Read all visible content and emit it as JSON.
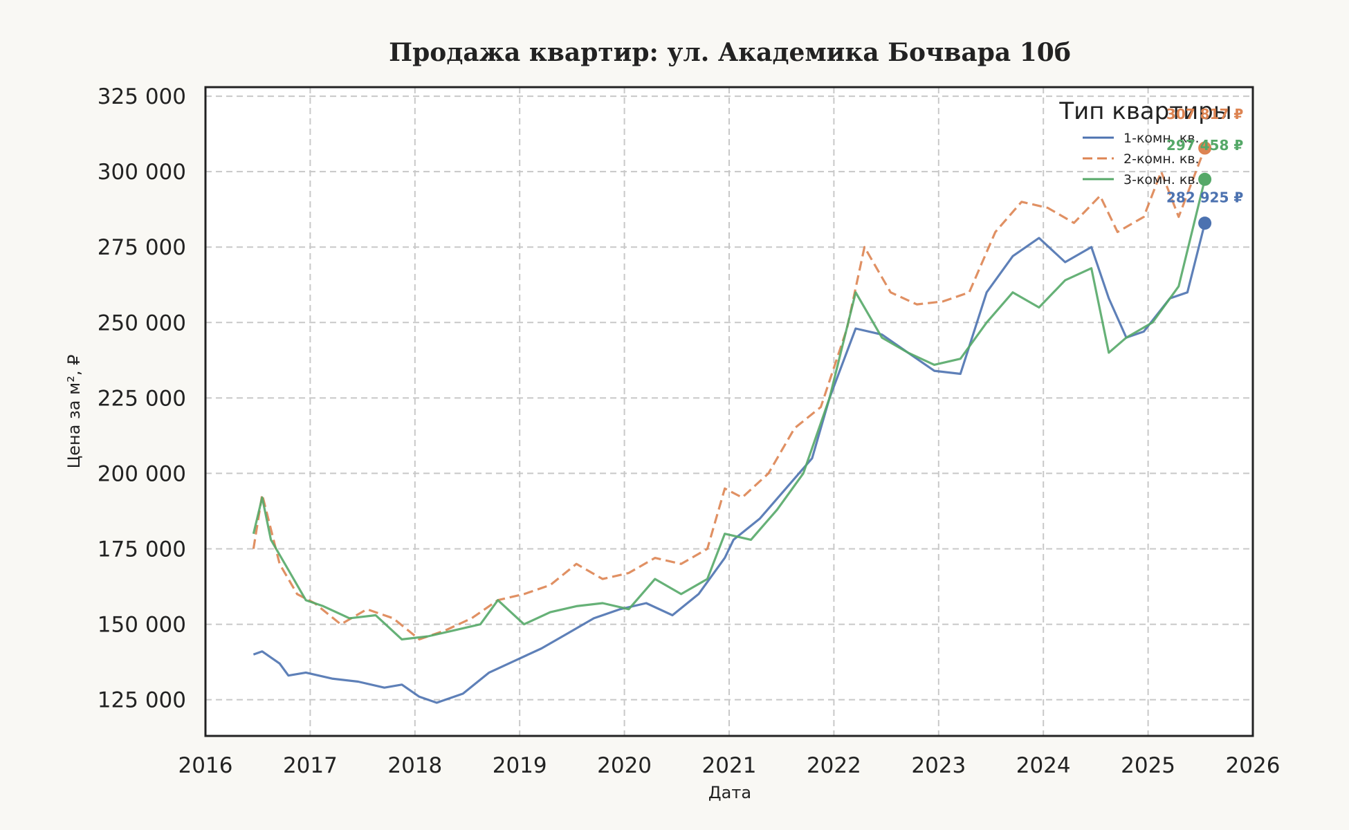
{
  "chart_data": {
    "type": "line",
    "title": "Продажа квартир: ул. Академика Бочвара 10б",
    "xlabel": "Дата",
    "ylabel": "Цена за м², ₽",
    "xlim": [
      2016,
      2026
    ],
    "ylim": [
      113000,
      328000
    ],
    "x_ticks": [
      "2016",
      "2017",
      "2018",
      "2019",
      "2020",
      "2021",
      "2022",
      "2023",
      "2024",
      "2025",
      "2026"
    ],
    "y_ticks": [
      "125 000",
      "150 000",
      "175 000",
      "200 000",
      "225 000",
      "250 000",
      "275 000",
      "300 000",
      "325 000"
    ],
    "grid": true,
    "legend": {
      "title": "Тип квартиры",
      "placement": "top-right"
    },
    "series": [
      {
        "name": "1-комн. кв.",
        "color": "#4c72b0",
        "dash": "solid",
        "end_label": "282 925 ₽",
        "end_value": 282925,
        "x": [
          "2016-06",
          "2016-07",
          "2016-09",
          "2016-10",
          "2016-12",
          "2017-03",
          "2017-06",
          "2017-09",
          "2017-11",
          "2018-01",
          "2018-03",
          "2018-06",
          "2018-09",
          "2018-12",
          "2019-03",
          "2019-06",
          "2019-09",
          "2019-12",
          "2020-03",
          "2020-06",
          "2020-09",
          "2020-12",
          "2021-01",
          "2021-04",
          "2021-07",
          "2021-10",
          "2021-12",
          "2022-03",
          "2022-06",
          "2022-09",
          "2022-12",
          "2023-03",
          "2023-06",
          "2023-09",
          "2023-12",
          "2024-03",
          "2024-06",
          "2024-08",
          "2024-10",
          "2024-12",
          "2025-03",
          "2025-05",
          "2025-07"
        ],
        "y": [
          140000,
          141000,
          137000,
          133000,
          134000,
          132000,
          131000,
          129000,
          130000,
          126000,
          124000,
          127000,
          134000,
          138000,
          142000,
          147000,
          152000,
          155000,
          157000,
          153000,
          160000,
          172000,
          178000,
          185000,
          195000,
          205000,
          225000,
          248000,
          246000,
          240000,
          234000,
          233000,
          260000,
          272000,
          278000,
          270000,
          275000,
          258000,
          245000,
          247000,
          258000,
          260000,
          282925
        ]
      },
      {
        "name": "2-комн. кв.",
        "color": "#dd8452",
        "dash": "dashed",
        "end_label": "307 817 ₽",
        "end_value": 307817,
        "x": [
          "2016-06",
          "2016-07",
          "2016-09",
          "2016-11",
          "2017-01",
          "2017-04",
          "2017-07",
          "2017-10",
          "2018-01",
          "2018-04",
          "2018-07",
          "2018-10",
          "2019-01",
          "2019-04",
          "2019-07",
          "2019-10",
          "2020-01",
          "2020-04",
          "2020-07",
          "2020-10",
          "2020-12",
          "2021-02",
          "2021-05",
          "2021-08",
          "2021-11",
          "2022-02",
          "2022-04",
          "2022-07",
          "2022-10",
          "2023-01",
          "2023-04",
          "2023-07",
          "2023-10",
          "2024-01",
          "2024-04",
          "2024-07",
          "2024-09",
          "2024-12",
          "2025-02",
          "2025-04",
          "2025-07"
        ],
        "y": [
          175000,
          193000,
          170000,
          160000,
          157000,
          150000,
          155000,
          152000,
          145000,
          148000,
          152000,
          158000,
          160000,
          163000,
          170000,
          165000,
          167000,
          172000,
          170000,
          175000,
          195000,
          192000,
          200000,
          215000,
          222000,
          248000,
          275000,
          260000,
          256000,
          257000,
          260000,
          280000,
          290000,
          288000,
          283000,
          292000,
          280000,
          285000,
          300000,
          285000,
          307817
        ]
      },
      {
        "name": "3-комн. кв.",
        "color": "#55a868",
        "dash": "solid",
        "end_label": "297 458 ₽",
        "end_value": 297458,
        "x": [
          "2016-06",
          "2016-07",
          "2016-08",
          "2016-10",
          "2016-12",
          "2017-02",
          "2017-05",
          "2017-08",
          "2017-11",
          "2018-02",
          "2018-05",
          "2018-08",
          "2018-10",
          "2019-01",
          "2019-04",
          "2019-07",
          "2019-10",
          "2020-01",
          "2020-04",
          "2020-07",
          "2020-10",
          "2020-12",
          "2021-03",
          "2021-06",
          "2021-09",
          "2021-12",
          "2022-03",
          "2022-06",
          "2022-09",
          "2022-12",
          "2023-03",
          "2023-06",
          "2023-09",
          "2023-12",
          "2024-03",
          "2024-06",
          "2024-08",
          "2024-10",
          "2025-01",
          "2025-04",
          "2025-07"
        ],
        "y": [
          180000,
          192000,
          178000,
          168000,
          158000,
          156000,
          152000,
          153000,
          145000,
          146000,
          148000,
          150000,
          158000,
          150000,
          154000,
          156000,
          157000,
          155000,
          165000,
          160000,
          165000,
          180000,
          178000,
          188000,
          200000,
          225000,
          260000,
          245000,
          240000,
          236000,
          238000,
          250000,
          260000,
          255000,
          264000,
          268000,
          240000,
          245000,
          250000,
          262000,
          297458
        ]
      }
    ]
  }
}
